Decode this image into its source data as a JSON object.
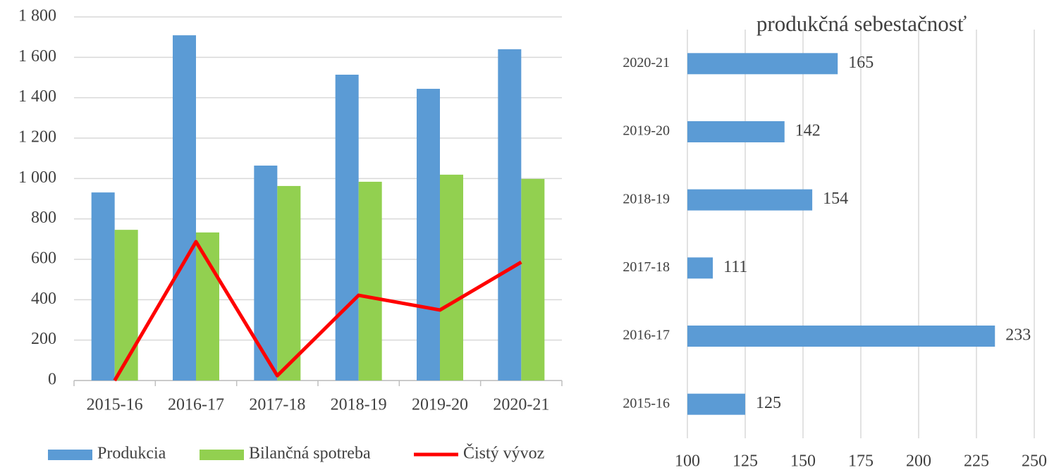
{
  "chart_data": [
    {
      "type": "bar",
      "categories": [
        "2015-16",
        "2016-17",
        "2017-18",
        "2018-19",
        "2019-20",
        "2020-21"
      ],
      "series": [
        {
          "name": "Produkcia",
          "type": "bar",
          "color": "#5b9bd5",
          "values": [
            931,
            1709,
            1064,
            1514,
            1444,
            1640
          ]
        },
        {
          "name": "Bilančná spotreba",
          "type": "bar",
          "color": "#92d050",
          "values": [
            746,
            733,
            963,
            984,
            1019,
            998
          ]
        },
        {
          "name": "Čistý vývoz",
          "type": "line",
          "color": "#ff0000",
          "values": [
            0,
            687,
            24,
            422,
            349,
            586
          ]
        }
      ],
      "ylim": [
        0,
        1800
      ],
      "yticks": [
        0,
        200,
        400,
        600,
        800,
        {
          "value": 1000,
          "label": "1 000"
        },
        {
          "value": 1200,
          "label": "1 200"
        },
        {
          "value": 1400,
          "label": "1 400"
        },
        {
          "value": 1600,
          "label": "1 600"
        },
        {
          "value": 1800,
          "label": "1 800"
        }
      ],
      "grid": true
    },
    {
      "type": "hbar",
      "title": "produkčná sebestačnosť",
      "categories": [
        "2015-16",
        "2016-17",
        "2017-18",
        "2018-19",
        "2019-20",
        "2020-21"
      ],
      "values": [
        125,
        233,
        111,
        154,
        142,
        165
      ],
      "color": "#5b9bd5",
      "xlim": [
        100,
        250
      ],
      "xticks": [
        100,
        125,
        150,
        175,
        200,
        225,
        250
      ],
      "grid": true
    }
  ]
}
